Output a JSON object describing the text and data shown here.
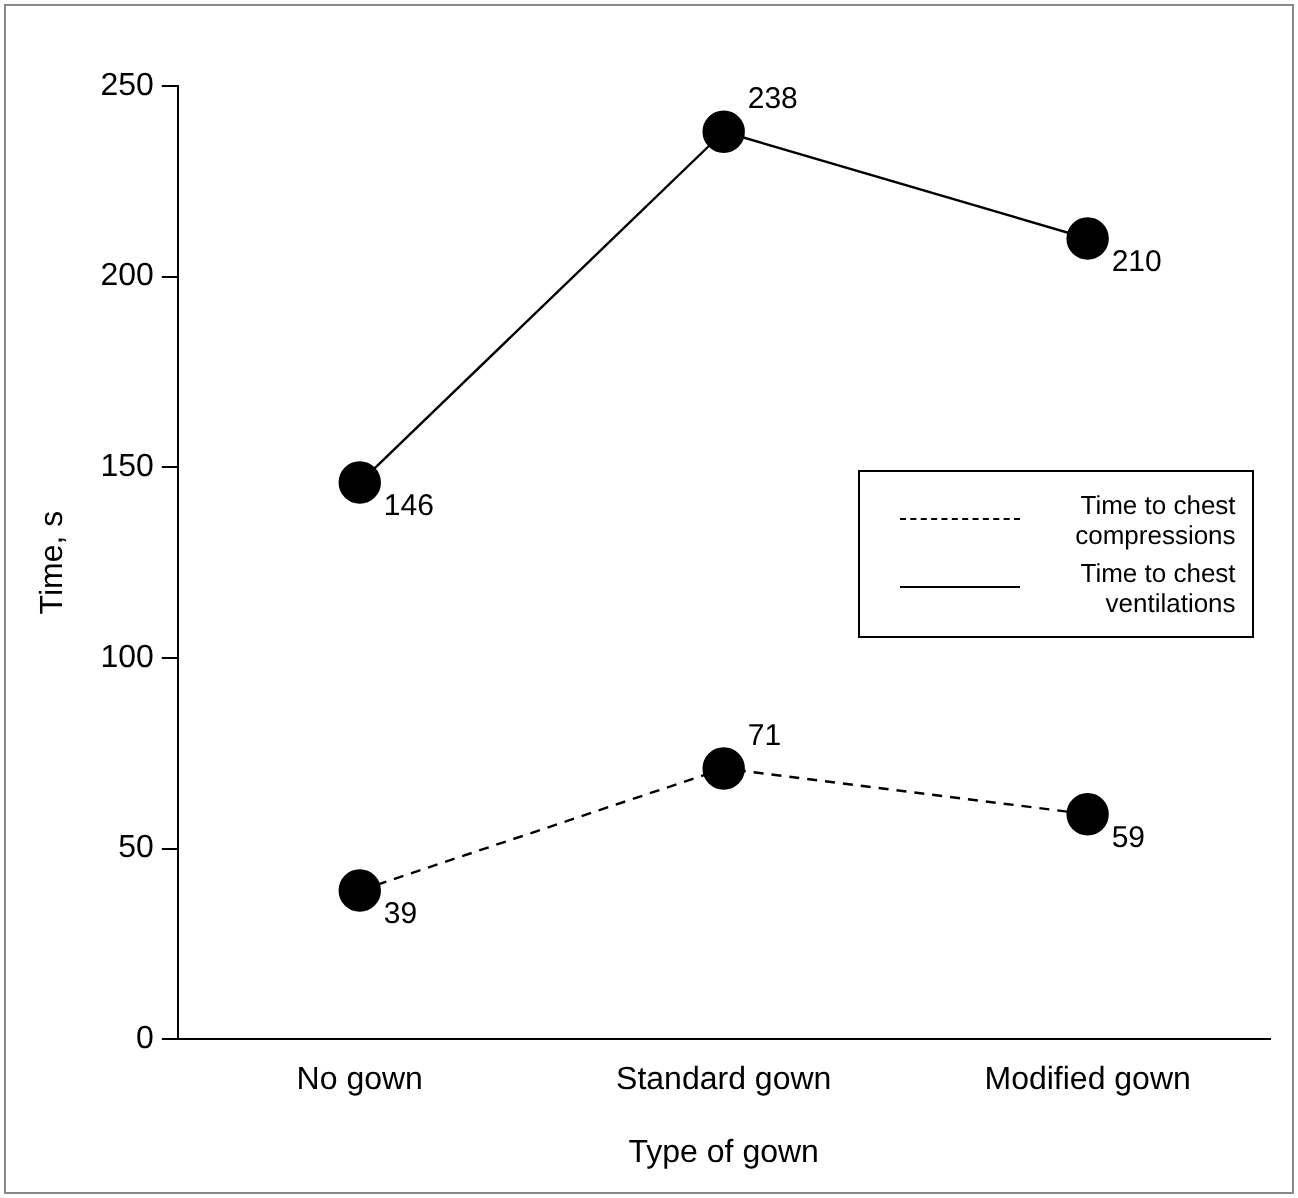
{
  "chart_data": {
    "type": "line",
    "xlabel": "Type of gown",
    "ylabel": "Time, s",
    "categories": [
      "No gown",
      "Standard gown",
      "Modified gown"
    ],
    "series": [
      {
        "name": "Time to chest compressions",
        "color": "#000000",
        "line_style": "dashed",
        "values": [
          39,
          71,
          59
        ]
      },
      {
        "name": "Time to chest ventilations",
        "color": "#000000",
        "line_style": "solid",
        "values": [
          146,
          238,
          210
        ]
      }
    ],
    "ylim": [
      0,
      250
    ],
    "yticks": [
      0,
      50,
      100,
      150,
      200,
      250
    ],
    "grid": false,
    "legend": "right",
    "marker": "circle",
    "data_labels": true
  }
}
